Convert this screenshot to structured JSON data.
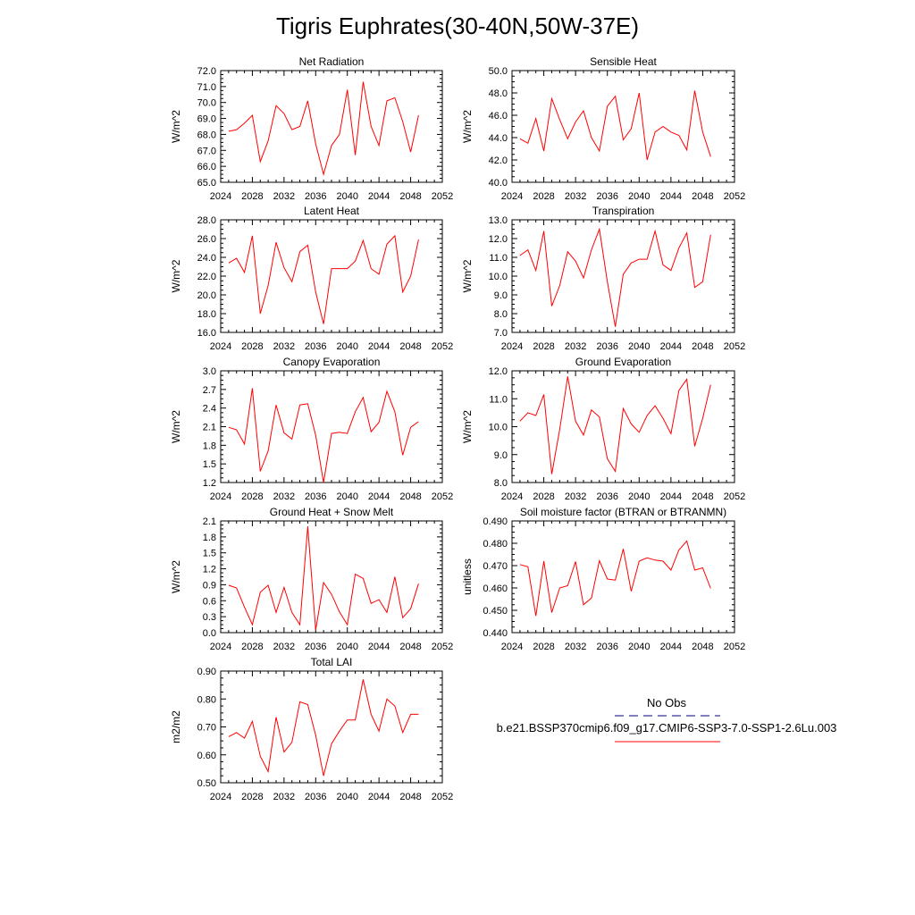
{
  "title": "Tigris Euphrates(30-40N,50W-37E)",
  "colors": {
    "model_line": "#ff0000",
    "obs_line": "#000080",
    "axes": "#000000"
  },
  "legend": {
    "obs_label": "No Obs",
    "model_label": "b.e21.BSSP370cmip6.f09_g17.CMIP6-SSP3-7.0-SSP1-2.6Lu.003"
  },
  "chart_data": [
    {
      "type": "line",
      "title": "Net Radiation",
      "ylabel": "W/m^2",
      "xlim": [
        2024,
        2052
      ],
      "xticks": [
        "2024",
        "2028",
        "2032",
        "2036",
        "2040",
        "2044",
        "2048",
        "2052"
      ],
      "ylim": [
        65.0,
        72.0
      ],
      "yticks": [
        "65.0",
        "66.0",
        "67.0",
        "68.0",
        "69.0",
        "70.0",
        "71.0",
        "72.0"
      ],
      "x": [
        2025,
        2026,
        2027,
        2028,
        2029,
        2030,
        2031,
        2032,
        2033,
        2034,
        2035,
        2036,
        2037,
        2038,
        2039,
        2040,
        2041,
        2042,
        2043,
        2044,
        2045,
        2046,
        2047,
        2048,
        2049
      ],
      "values": [
        68.2,
        68.3,
        68.7,
        69.2,
        66.3,
        67.6,
        69.8,
        69.3,
        68.3,
        68.5,
        70.1,
        67.4,
        65.5,
        67.3,
        68.0,
        70.8,
        66.7,
        71.3,
        68.5,
        67.3,
        70.1,
        70.3,
        68.8,
        66.9,
        69.2
      ]
    },
    {
      "type": "line",
      "title": "Sensible Heat",
      "ylabel": "W/m^2",
      "xlim": [
        2024,
        2052
      ],
      "xticks": [
        "2024",
        "2028",
        "2032",
        "2036",
        "2040",
        "2044",
        "2048",
        "2052"
      ],
      "ylim": [
        40.0,
        50.0
      ],
      "yticks": [
        "40.0",
        "42.0",
        "44.0",
        "46.0",
        "48.0",
        "50.0"
      ],
      "x": [
        2025,
        2026,
        2027,
        2028,
        2029,
        2030,
        2031,
        2032,
        2033,
        2034,
        2035,
        2036,
        2037,
        2038,
        2039,
        2040,
        2041,
        2042,
        2043,
        2044,
        2045,
        2046,
        2047,
        2048,
        2049
      ],
      "values": [
        43.9,
        43.5,
        45.7,
        42.8,
        47.5,
        45.6,
        43.9,
        45.4,
        46.4,
        44.0,
        42.8,
        46.8,
        47.7,
        43.8,
        44.8,
        48.0,
        42.0,
        44.5,
        45.0,
        44.5,
        44.2,
        42.9,
        48.2,
        44.5,
        42.3
      ]
    },
    {
      "type": "line",
      "title": "Latent Heat",
      "ylabel": "W/m^2",
      "xlim": [
        2024,
        2052
      ],
      "xticks": [
        "2024",
        "2028",
        "2032",
        "2036",
        "2040",
        "2044",
        "2048",
        "2052"
      ],
      "ylim": [
        16.0,
        28.0
      ],
      "yticks": [
        "16.0",
        "18.0",
        "20.0",
        "22.0",
        "24.0",
        "26.0",
        "28.0"
      ],
      "x": [
        2025,
        2026,
        2027,
        2028,
        2029,
        2030,
        2031,
        2032,
        2033,
        2034,
        2035,
        2036,
        2037,
        2038,
        2039,
        2040,
        2041,
        2042,
        2043,
        2044,
        2045,
        2046,
        2047,
        2048,
        2049
      ],
      "values": [
        23.4,
        23.9,
        22.4,
        26.3,
        18.0,
        21.0,
        25.6,
        22.9,
        21.4,
        24.6,
        25.3,
        20.3,
        16.9,
        22.8,
        22.8,
        22.8,
        23.6,
        25.8,
        22.8,
        22.2,
        25.4,
        26.3,
        20.3,
        22.0,
        25.9
      ]
    },
    {
      "type": "line",
      "title": "Transpiration",
      "ylabel": "W/m^2",
      "xlim": [
        2024,
        2052
      ],
      "xticks": [
        "2024",
        "2028",
        "2032",
        "2036",
        "2040",
        "2044",
        "2048",
        "2052"
      ],
      "ylim": [
        7.0,
        13.0
      ],
      "yticks": [
        "7.0",
        "8.0",
        "9.0",
        "10.0",
        "11.0",
        "12.0",
        "13.0"
      ],
      "x": [
        2025,
        2026,
        2027,
        2028,
        2029,
        2030,
        2031,
        2032,
        2033,
        2034,
        2035,
        2036,
        2037,
        2038,
        2039,
        2040,
        2041,
        2042,
        2043,
        2044,
        2045,
        2046,
        2047,
        2048,
        2049
      ],
      "values": [
        11.1,
        11.4,
        10.3,
        12.4,
        8.4,
        9.5,
        11.3,
        10.8,
        9.9,
        11.4,
        12.5,
        9.7,
        7.3,
        10.1,
        10.7,
        10.9,
        10.9,
        12.4,
        10.6,
        10.3,
        11.5,
        12.3,
        9.4,
        9.7,
        12.2
      ]
    },
    {
      "type": "line",
      "title": "Canopy Evaporation",
      "ylabel": "W/m^2",
      "xlim": [
        2024,
        2052
      ],
      "xticks": [
        "2024",
        "2028",
        "2032",
        "2036",
        "2040",
        "2044",
        "2048",
        "2052"
      ],
      "ylim": [
        1.2,
        3.0
      ],
      "yticks": [
        "1.2",
        "1.5",
        "1.8",
        "2.1",
        "2.4",
        "2.7",
        "3.0"
      ],
      "x": [
        2025,
        2026,
        2027,
        2028,
        2029,
        2030,
        2031,
        2032,
        2033,
        2034,
        2035,
        2036,
        2037,
        2038,
        2039,
        2040,
        2041,
        2042,
        2043,
        2044,
        2045,
        2046,
        2047,
        2048,
        2049
      ],
      "values": [
        2.09,
        2.05,
        1.82,
        2.72,
        1.38,
        1.71,
        2.45,
        2.0,
        1.9,
        2.45,
        2.47,
        1.96,
        1.2,
        1.99,
        2.01,
        1.99,
        2.34,
        2.57,
        2.02,
        2.17,
        2.67,
        2.34,
        1.64,
        2.09,
        2.18
      ]
    },
    {
      "type": "line",
      "title": "Ground Evaporation",
      "ylabel": "W/m^2",
      "xlim": [
        2024,
        2052
      ],
      "xticks": [
        "2024",
        "2028",
        "2032",
        "2036",
        "2040",
        "2044",
        "2048",
        "2052"
      ],
      "ylim": [
        8.0,
        12.0
      ],
      "yticks": [
        "8.0",
        "9.0",
        "10.0",
        "11.0",
        "12.0"
      ],
      "x": [
        2025,
        2026,
        2027,
        2028,
        2029,
        2030,
        2031,
        2032,
        2033,
        2034,
        2035,
        2036,
        2037,
        2038,
        2039,
        2040,
        2041,
        2042,
        2043,
        2044,
        2045,
        2046,
        2047,
        2048,
        2049
      ],
      "values": [
        10.2,
        10.5,
        10.4,
        11.15,
        8.3,
        9.9,
        11.8,
        10.2,
        9.7,
        10.6,
        10.35,
        8.85,
        8.4,
        10.65,
        10.1,
        9.8,
        10.4,
        10.75,
        10.3,
        9.75,
        11.3,
        11.7,
        9.3,
        10.3,
        11.5
      ]
    },
    {
      "type": "line",
      "title": "Ground Heat + Snow Melt",
      "ylabel": "W/m^2",
      "xlim": [
        2024,
        2052
      ],
      "xticks": [
        "2024",
        "2028",
        "2032",
        "2036",
        "2040",
        "2044",
        "2048",
        "2052"
      ],
      "ylim": [
        0.0,
        2.1
      ],
      "yticks": [
        "0.0",
        "0.3",
        "0.6",
        "0.9",
        "1.2",
        "1.5",
        "1.8",
        "2.1"
      ],
      "x": [
        2025,
        2026,
        2027,
        2028,
        2029,
        2030,
        2031,
        2032,
        2033,
        2034,
        2035,
        2036,
        2037,
        2038,
        2039,
        2040,
        2041,
        2042,
        2043,
        2044,
        2045,
        2046,
        2047,
        2048,
        2049
      ],
      "values": [
        0.89,
        0.84,
        0.48,
        0.15,
        0.76,
        0.89,
        0.38,
        0.85,
        0.38,
        0.15,
        2.0,
        0.05,
        0.94,
        0.72,
        0.39,
        0.15,
        1.1,
        1.02,
        0.55,
        0.62,
        0.38,
        1.05,
        0.28,
        0.45,
        0.92
      ]
    },
    {
      "type": "line",
      "title": "Soil moisture factor (BTRAN or BTRANMN)",
      "ylabel": "unitless",
      "xlim": [
        2024,
        2052
      ],
      "xticks": [
        "2024",
        "2028",
        "2032",
        "2036",
        "2040",
        "2044",
        "2048",
        "2052"
      ],
      "ylim": [
        0.44,
        0.49
      ],
      "yticks": [
        "0.440",
        "0.450",
        "0.460",
        "0.470",
        "0.480",
        "0.490"
      ],
      "x": [
        2025,
        2026,
        2027,
        2028,
        2029,
        2030,
        2031,
        2032,
        2033,
        2034,
        2035,
        2036,
        2037,
        2038,
        2039,
        2040,
        2041,
        2042,
        2043,
        2044,
        2045,
        2046,
        2047,
        2048,
        2049
      ],
      "values": [
        0.4705,
        0.4695,
        0.4475,
        0.472,
        0.449,
        0.46,
        0.461,
        0.4718,
        0.4525,
        0.4555,
        0.4722,
        0.464,
        0.4635,
        0.4775,
        0.4585,
        0.472,
        0.4735,
        0.4725,
        0.472,
        0.468,
        0.477,
        0.481,
        0.468,
        0.469,
        0.4598
      ]
    },
    {
      "type": "line",
      "title": "Total LAI",
      "ylabel": "m2/m2",
      "xlim": [
        2024,
        2052
      ],
      "xticks": [
        "2024",
        "2028",
        "2032",
        "2036",
        "2040",
        "2044",
        "2048",
        "2052"
      ],
      "ylim": [
        0.5,
        0.9
      ],
      "yticks": [
        "0.50",
        "0.60",
        "0.70",
        "0.80",
        "0.90"
      ],
      "x": [
        2025,
        2026,
        2027,
        2028,
        2029,
        2030,
        2031,
        2032,
        2033,
        2034,
        2035,
        2036,
        2037,
        2038,
        2039,
        2040,
        2041,
        2042,
        2043,
        2044,
        2045,
        2046,
        2047,
        2048,
        2049
      ],
      "values": [
        0.665,
        0.68,
        0.66,
        0.72,
        0.595,
        0.54,
        0.735,
        0.61,
        0.645,
        0.79,
        0.78,
        0.67,
        0.525,
        0.64,
        0.685,
        0.725,
        0.725,
        0.87,
        0.745,
        0.685,
        0.8,
        0.775,
        0.68,
        0.745,
        0.745
      ]
    }
  ]
}
